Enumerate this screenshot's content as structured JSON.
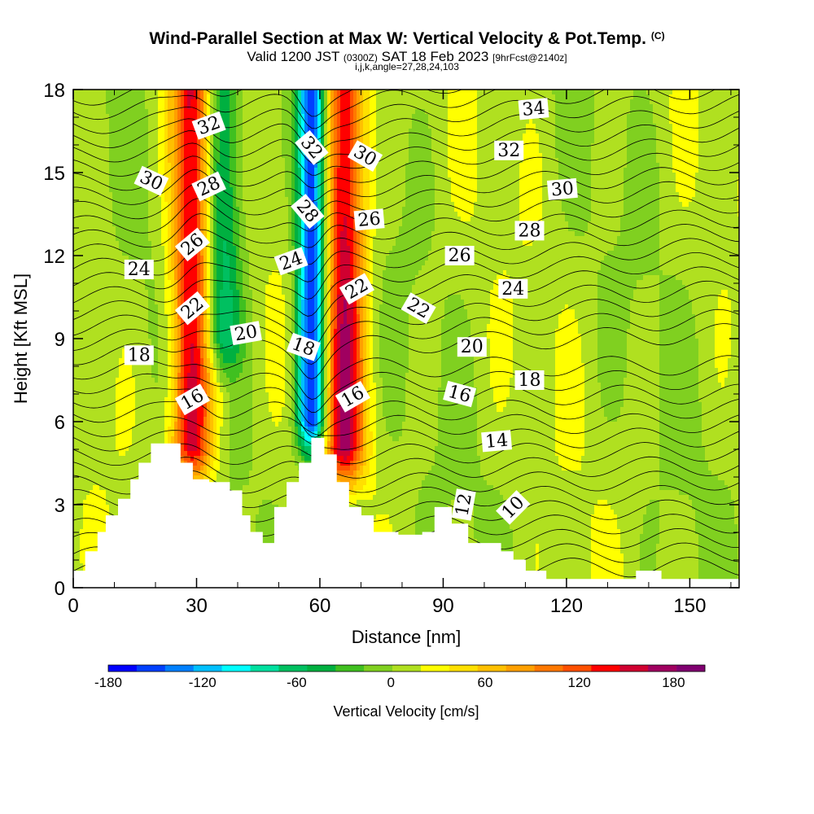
{
  "chart_data": {
    "type": "heatmap",
    "title": "Wind-Parallel Section at Max W: Vertical Velocity & Pot.Temp.",
    "title_mark": "(C)",
    "subtitle_prefix": "Valid 1200 JST",
    "subtitle_utc": "(0300Z)",
    "subtitle_date": "SAT 18 Feb 2023",
    "subtitle_fcst": "[9hrFcst@2140z]",
    "subtitle2": "i,j,k,angle=27,28,24,103",
    "xlabel": "Distance [nm]",
    "ylabel": "Height [Kft MSL]",
    "xlim": [
      0,
      162
    ],
    "ylim": [
      0,
      18
    ],
    "xticks": [
      0,
      30,
      60,
      90,
      120,
      150
    ],
    "yticks": [
      0,
      3,
      6,
      9,
      12,
      15,
      18
    ],
    "colorbar": {
      "label": "Vertical Velocity [cm/s]",
      "range": [
        -180,
        200
      ],
      "tick_values": [
        -180,
        -120,
        -60,
        0,
        60,
        120,
        180
      ],
      "colors": [
        "#0000ff",
        "#0040ff",
        "#0080ff",
        "#00c0ff",
        "#00ffff",
        "#00e0a0",
        "#00c060",
        "#00b040",
        "#40c020",
        "#80d020",
        "#b0e020",
        "#ffff00",
        "#ffe000",
        "#ffc000",
        "#ffa000",
        "#ff7800",
        "#ff5000",
        "#ff0000",
        "#d00030",
        "#a00060",
        "#800070"
      ]
    },
    "velocity_features": [
      {
        "type": "updraft",
        "x_center": 29,
        "width": 5,
        "z_bottom": 5,
        "z_top": 18,
        "peak": 150
      },
      {
        "type": "updraft",
        "x_center": 66,
        "width": 5,
        "z_bottom": 5,
        "z_top": 18,
        "peak": 150
      },
      {
        "type": "downdraft",
        "x_center": 58,
        "width": 3.5,
        "z_bottom": 6,
        "z_top": 18,
        "peak": -180
      },
      {
        "type": "downdraft",
        "x_center": 36,
        "width": 5,
        "z_bottom": 9,
        "z_top": 18,
        "peak": -80
      }
    ],
    "theta_levels": [
      10,
      12,
      14,
      16,
      18,
      20,
      22,
      24,
      26,
      28,
      30,
      32,
      34
    ],
    "contour_labels": [
      {
        "text": "32",
        "x": 33,
        "z": 16.7,
        "angle": -20
      },
      {
        "text": "30",
        "x": 19,
        "z": 14.7,
        "angle": 25
      },
      {
        "text": "28",
        "x": 33,
        "z": 14.5,
        "angle": -25
      },
      {
        "text": "26",
        "x": 29,
        "z": 12.4,
        "angle": -40
      },
      {
        "text": "24",
        "x": 16,
        "z": 11.5,
        "angle": 0
      },
      {
        "text": "22",
        "x": 29,
        "z": 10.1,
        "angle": -40
      },
      {
        "text": "18",
        "x": 16,
        "z": 8.4,
        "angle": 0
      },
      {
        "text": "16",
        "x": 29,
        "z": 6.8,
        "angle": -30
      },
      {
        "text": "20",
        "x": 42,
        "z": 9.2,
        "angle": -10
      },
      {
        "text": "24",
        "x": 53,
        "z": 11.8,
        "angle": -20
      },
      {
        "text": "18",
        "x": 56,
        "z": 8.7,
        "angle": 20
      },
      {
        "text": "32",
        "x": 58,
        "z": 15.9,
        "angle": 50
      },
      {
        "text": "28",
        "x": 57,
        "z": 13.6,
        "angle": 50
      },
      {
        "text": "30",
        "x": 71,
        "z": 15.6,
        "angle": 30
      },
      {
        "text": "26",
        "x": 72,
        "z": 13.3,
        "angle": -5
      },
      {
        "text": "22",
        "x": 69,
        "z": 10.8,
        "angle": -30
      },
      {
        "text": "16",
        "x": 68,
        "z": 6.9,
        "angle": -30
      },
      {
        "text": "22",
        "x": 84,
        "z": 10.1,
        "angle": 30
      },
      {
        "text": "26",
        "x": 94,
        "z": 12.0,
        "angle": 0
      },
      {
        "text": "20",
        "x": 97,
        "z": 8.7,
        "angle": 0
      },
      {
        "text": "16",
        "x": 94,
        "z": 7.0,
        "angle": 15
      },
      {
        "text": "14",
        "x": 103,
        "z": 5.3,
        "angle": -5
      },
      {
        "text": "12",
        "x": 95,
        "z": 3.0,
        "angle": -80
      },
      {
        "text": "10",
        "x": 107,
        "z": 2.9,
        "angle": -45
      },
      {
        "text": "18",
        "x": 111,
        "z": 7.5,
        "angle": 0
      },
      {
        "text": "24",
        "x": 107,
        "z": 10.8,
        "angle": 0
      },
      {
        "text": "28",
        "x": 111,
        "z": 12.9,
        "angle": 0
      },
      {
        "text": "30",
        "x": 119,
        "z": 14.4,
        "angle": -5
      },
      {
        "text": "32",
        "x": 106,
        "z": 15.8,
        "angle": 0
      },
      {
        "text": "34",
        "x": 112,
        "z": 17.3,
        "angle": -5
      }
    ],
    "terrain": [
      [
        0,
        0.6
      ],
      [
        3,
        0.6
      ],
      [
        3,
        1.3
      ],
      [
        6,
        1.3
      ],
      [
        6,
        2.0
      ],
      [
        8,
        2.0
      ],
      [
        8,
        2.6
      ],
      [
        11,
        2.6
      ],
      [
        11,
        3.2
      ],
      [
        14,
        3.2
      ],
      [
        14,
        3.9
      ],
      [
        16,
        3.9
      ],
      [
        16,
        4.5
      ],
      [
        19,
        4.5
      ],
      [
        19,
        5.2
      ],
      [
        26,
        5.2
      ],
      [
        26,
        4.5
      ],
      [
        29,
        4.5
      ],
      [
        29,
        3.9
      ],
      [
        33,
        3.9
      ],
      [
        33,
        3.8
      ],
      [
        38,
        3.8
      ],
      [
        38,
        3.5
      ],
      [
        41,
        3.5
      ],
      [
        41,
        2.6
      ],
      [
        43,
        2.6
      ],
      [
        43,
        2.0
      ],
      [
        46,
        2.0
      ],
      [
        46,
        1.6
      ],
      [
        49,
        1.6
      ],
      [
        49,
        2.9
      ],
      [
        52,
        2.9
      ],
      [
        52,
        3.8
      ],
      [
        55,
        3.8
      ],
      [
        55,
        4.5
      ],
      [
        58,
        4.5
      ],
      [
        58,
        5.4
      ],
      [
        61,
        5.4
      ],
      [
        61,
        4.8
      ],
      [
        64,
        4.8
      ],
      [
        64,
        3.8
      ],
      [
        67,
        3.8
      ],
      [
        67,
        2.9
      ],
      [
        70,
        2.9
      ],
      [
        70,
        2.6
      ],
      [
        73,
        2.6
      ],
      [
        73,
        2.0
      ],
      [
        76,
        2.0
      ],
      [
        76,
        2.0
      ],
      [
        79,
        2.0
      ],
      [
        79,
        1.9
      ],
      [
        85,
        1.9
      ],
      [
        85,
        2.0
      ],
      [
        88,
        2.0
      ],
      [
        88,
        2.9
      ],
      [
        92,
        2.9
      ],
      [
        92,
        2.3
      ],
      [
        96,
        2.3
      ],
      [
        96,
        1.6
      ],
      [
        104,
        1.6
      ],
      [
        104,
        1.3
      ],
      [
        107,
        1.3
      ],
      [
        107,
        1.0
      ],
      [
        110,
        1.0
      ],
      [
        110,
        0.6
      ],
      [
        115,
        0.6
      ],
      [
        115,
        0.3
      ],
      [
        137,
        0.3
      ],
      [
        137,
        0.6
      ],
      [
        143,
        0.6
      ],
      [
        143,
        0.3
      ],
      [
        162,
        0.3
      ]
    ]
  }
}
